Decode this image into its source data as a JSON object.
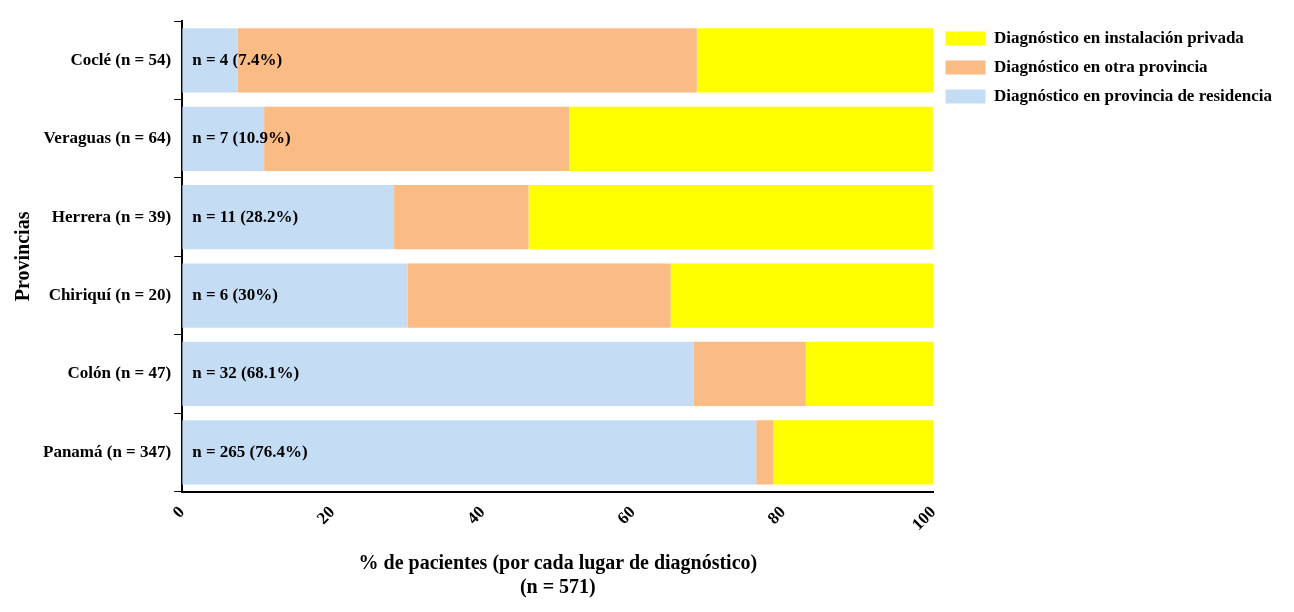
{
  "chart_data": {
    "type": "bar",
    "orientation": "horizontal",
    "stacked": true,
    "ylabel": "Provincias",
    "xlabel": "% de pacientes (por cada lugar de diagnóstico)\n(n = 571)",
    "categories": [
      "Coclé (n = 54)",
      "Veraguas (n = 64)",
      "Herrera (n = 39)",
      "Chiriquí (n = 20)",
      "Colón (n = 47)",
      "Panamá (n = 347)"
    ],
    "series": [
      {
        "name": "Diagnóstico en provincia de residencia",
        "color": "#c5dcf5",
        "values": [
          7.4,
          10.9,
          28.2,
          30,
          68.1,
          76.4
        ],
        "value_labels": [
          "n = 4 (7.4%)",
          "n = 7 (10.9%)",
          "n = 11 (28.2%)",
          "n = 6 (30%)",
          "n = 32 (68.1%)",
          "n = 265 (76.4%)"
        ]
      },
      {
        "name": "Diagnóstico en otra provincia",
        "color": "#fbbb85",
        "values": [
          61.1,
          40.6,
          17.9,
          35,
          14.9,
          2.3
        ]
      },
      {
        "name": "Diagnóstico en instalación privada",
        "color": "#ffff00",
        "values": [
          31.5,
          48.4,
          53.8,
          35,
          17,
          21.3
        ]
      }
    ],
    "xlim": [
      0,
      100
    ],
    "xticks": [
      0,
      20,
      40,
      60,
      80,
      100
    ],
    "grid": false,
    "legend": "top right"
  }
}
